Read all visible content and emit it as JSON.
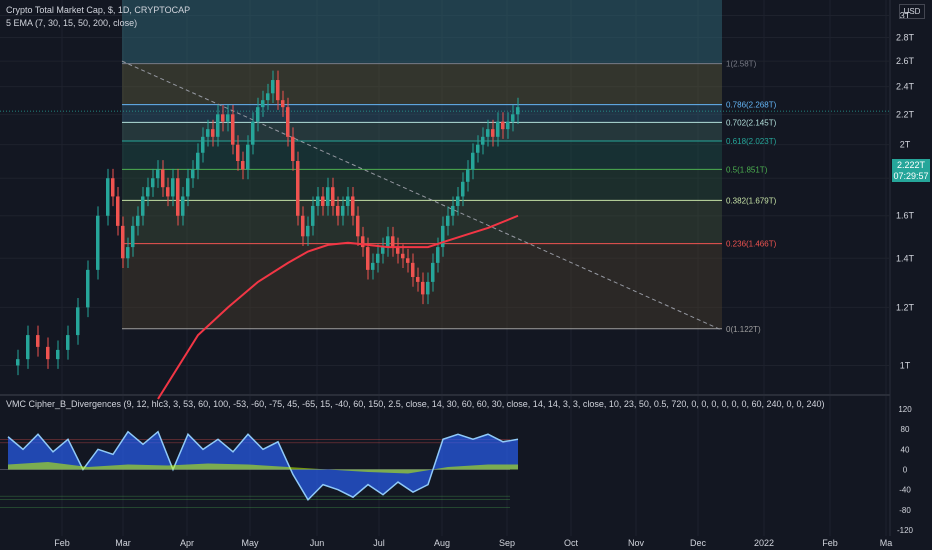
{
  "legend": {
    "symbol": "Crypto Total Market Cap, $, 1D, CRYPTOCAP",
    "ema": "5 EMA (7, 30, 15, 50, 200, close)",
    "indicator": "VMC Cipher_B_Divergences (9, 12, hlc3, 3, 53, 60, 100, -53, -60, -75, 45, -65, 15, -40, 60, 150, 2.5, close, 14, 30, 60, 60, 30, close, 14, 14, 3, 3, close, 10, 23, 50, 0.5, 720, 0, 0, 0, 0, 0, 0, 60, 240, 0, 0, 240)"
  },
  "currency": "USD",
  "current_price": {
    "value": "2.222T",
    "countdown": "07:29:57"
  },
  "chart_data": [
    {
      "type": "line",
      "title": "Crypto Total Market Cap, $, 1D, CRYPTOCAP",
      "yscale": "log",
      "ylim": [
        0.92,
        3.15
      ],
      "price_axis_labels": [
        "3T",
        "2.8T",
        "2.6T",
        "2.4T",
        "2.2T",
        "2T",
        "1.8T",
        "1.6T",
        "1.4T",
        "1.2T",
        "1T"
      ],
      "price_axis_values": [
        3.0,
        2.8,
        2.6,
        2.4,
        2.2,
        2.0,
        1.8,
        1.6,
        1.4,
        1.2,
        1.0
      ],
      "time_axis_labels": [
        "Feb",
        "Mar",
        "Apr",
        "May",
        "Jun",
        "Jul",
        "Aug",
        "Sep",
        "Oct",
        "Nov",
        "Dec",
        "2022",
        "Feb",
        "Ma"
      ],
      "fib_levels": [
        {
          "label": "1(2.58T)",
          "value": 2.58,
          "color": "#787b86"
        },
        {
          "label": "0.786(2.268T)",
          "value": 2.268,
          "color": "#64b5f6"
        },
        {
          "label": "0.702(2.145T)",
          "value": 2.145,
          "color": "#b2dfdb"
        },
        {
          "label": "0.618(2.023T)",
          "value": 2.023,
          "color": "#26a69a"
        },
        {
          "label": "0.5(1.851T)",
          "value": 1.851,
          "color": "#4caf50"
        },
        {
          "label": "0.382(1.679T)",
          "value": 1.679,
          "color": "#c5e1a5"
        },
        {
          "label": "0.236(1.466T)",
          "value": 1.466,
          "color": "#ef5350"
        },
        {
          "label": "0(1.122T)",
          "value": 1.122,
          "color": "#9e9e9e"
        }
      ],
      "price_series": {
        "name": "",
        "points": [
          [
            0,
            1.0
          ],
          [
            10,
            1.02
          ],
          [
            20,
            1.1
          ],
          [
            30,
            1.06
          ],
          [
            40,
            1.02
          ],
          [
            50,
            1.05
          ],
          [
            60,
            1.1
          ],
          [
            70,
            1.2
          ],
          [
            80,
            1.35
          ],
          [
            90,
            1.6
          ],
          [
            100,
            1.8
          ],
          [
            105,
            1.7
          ],
          [
            110,
            1.55
          ],
          [
            115,
            1.4
          ],
          [
            120,
            1.45
          ],
          [
            125,
            1.55
          ],
          [
            130,
            1.6
          ],
          [
            135,
            1.7
          ],
          [
            140,
            1.75
          ],
          [
            145,
            1.8
          ],
          [
            150,
            1.85
          ],
          [
            155,
            1.75
          ],
          [
            160,
            1.7
          ],
          [
            165,
            1.8
          ],
          [
            170,
            1.6
          ],
          [
            175,
            1.7
          ],
          [
            180,
            1.8
          ],
          [
            185,
            1.85
          ],
          [
            190,
            1.95
          ],
          [
            195,
            2.05
          ],
          [
            200,
            2.1
          ],
          [
            205,
            2.05
          ],
          [
            210,
            2.2
          ],
          [
            215,
            2.15
          ],
          [
            220,
            2.2
          ],
          [
            225,
            2.0
          ],
          [
            230,
            1.9
          ],
          [
            235,
            1.85
          ],
          [
            240,
            2.0
          ],
          [
            245,
            2.15
          ],
          [
            250,
            2.25
          ],
          [
            255,
            2.3
          ],
          [
            260,
            2.35
          ],
          [
            265,
            2.45
          ],
          [
            270,
            2.3
          ],
          [
            275,
            2.25
          ],
          [
            280,
            2.05
          ],
          [
            285,
            1.9
          ],
          [
            290,
            1.6
          ],
          [
            295,
            1.5
          ],
          [
            300,
            1.55
          ],
          [
            305,
            1.65
          ],
          [
            310,
            1.7
          ],
          [
            315,
            1.65
          ],
          [
            320,
            1.75
          ],
          [
            325,
            1.65
          ],
          [
            330,
            1.6
          ],
          [
            335,
            1.65
          ],
          [
            340,
            1.7
          ],
          [
            345,
            1.6
          ],
          [
            350,
            1.5
          ],
          [
            355,
            1.45
          ],
          [
            360,
            1.35
          ],
          [
            365,
            1.38
          ],
          [
            370,
            1.42
          ],
          [
            375,
            1.45
          ],
          [
            380,
            1.5
          ],
          [
            385,
            1.45
          ],
          [
            390,
            1.42
          ],
          [
            395,
            1.4
          ],
          [
            400,
            1.38
          ],
          [
            405,
            1.32
          ],
          [
            410,
            1.3
          ],
          [
            415,
            1.25
          ],
          [
            420,
            1.3
          ],
          [
            425,
            1.38
          ],
          [
            430,
            1.45
          ],
          [
            435,
            1.55
          ],
          [
            440,
            1.6
          ],
          [
            445,
            1.65
          ],
          [
            450,
            1.7
          ],
          [
            455,
            1.78
          ],
          [
            460,
            1.85
          ],
          [
            465,
            1.95
          ],
          [
            470,
            2.0
          ],
          [
            475,
            2.05
          ],
          [
            480,
            2.1
          ],
          [
            485,
            2.05
          ],
          [
            490,
            2.15
          ],
          [
            495,
            2.1
          ],
          [
            500,
            2.15
          ],
          [
            505,
            2.2
          ],
          [
            510,
            2.25
          ]
        ]
      },
      "ema200_series": {
        "name": "",
        "points": [
          [
            150,
            0.9
          ],
          [
            190,
            1.1
          ],
          [
            220,
            1.2
          ],
          [
            250,
            1.3
          ],
          [
            280,
            1.38
          ],
          [
            300,
            1.43
          ],
          [
            320,
            1.46
          ],
          [
            340,
            1.47
          ],
          [
            360,
            1.46
          ],
          [
            380,
            1.45
          ],
          [
            400,
            1.45
          ],
          [
            420,
            1.45
          ],
          [
            440,
            1.48
          ],
          [
            460,
            1.51
          ],
          [
            480,
            1.54
          ],
          [
            510,
            1.6
          ]
        ]
      },
      "trendline": {
        "from": [
          122,
          2.6
        ],
        "to": [
          720,
          1.12
        ]
      }
    },
    {
      "type": "line",
      "title": "VMC Cipher_B_Divergences",
      "ylim": [
        -130,
        130
      ],
      "axis_labels": [
        "120",
        "80",
        "40",
        "0",
        "-40",
        "-80",
        "-120"
      ],
      "axis_values": [
        120,
        80,
        40,
        0,
        -40,
        -80,
        -120
      ],
      "wave1": {
        "name": "",
        "points": [
          [
            0,
            65
          ],
          [
            15,
            40
          ],
          [
            30,
            70
          ],
          [
            45,
            35
          ],
          [
            60,
            60
          ],
          [
            75,
            0
          ],
          [
            90,
            40
          ],
          [
            105,
            30
          ],
          [
            120,
            75
          ],
          [
            135,
            50
          ],
          [
            150,
            75
          ],
          [
            165,
            0
          ],
          [
            180,
            70
          ],
          [
            195,
            40
          ],
          [
            210,
            60
          ],
          [
            225,
            35
          ],
          [
            240,
            70
          ],
          [
            255,
            40
          ],
          [
            270,
            55
          ],
          [
            285,
            -10
          ],
          [
            300,
            -60
          ],
          [
            315,
            -30
          ],
          [
            330,
            -40
          ],
          [
            345,
            -55
          ],
          [
            360,
            -30
          ],
          [
            375,
            -50
          ],
          [
            390,
            -25
          ],
          [
            405,
            -45
          ],
          [
            420,
            -30
          ],
          [
            435,
            60
          ],
          [
            450,
            70
          ],
          [
            465,
            60
          ],
          [
            480,
            70
          ],
          [
            495,
            55
          ],
          [
            510,
            60
          ]
        ]
      },
      "money_flow": {
        "name": "",
        "points": [
          [
            0,
            10
          ],
          [
            40,
            15
          ],
          [
            80,
            5
          ],
          [
            120,
            10
          ],
          [
            160,
            8
          ],
          [
            200,
            12
          ],
          [
            240,
            10
          ],
          [
            280,
            5
          ],
          [
            320,
            0
          ],
          [
            360,
            -5
          ],
          [
            400,
            -8
          ],
          [
            440,
            5
          ],
          [
            480,
            10
          ],
          [
            510,
            10
          ]
        ]
      }
    }
  ]
}
